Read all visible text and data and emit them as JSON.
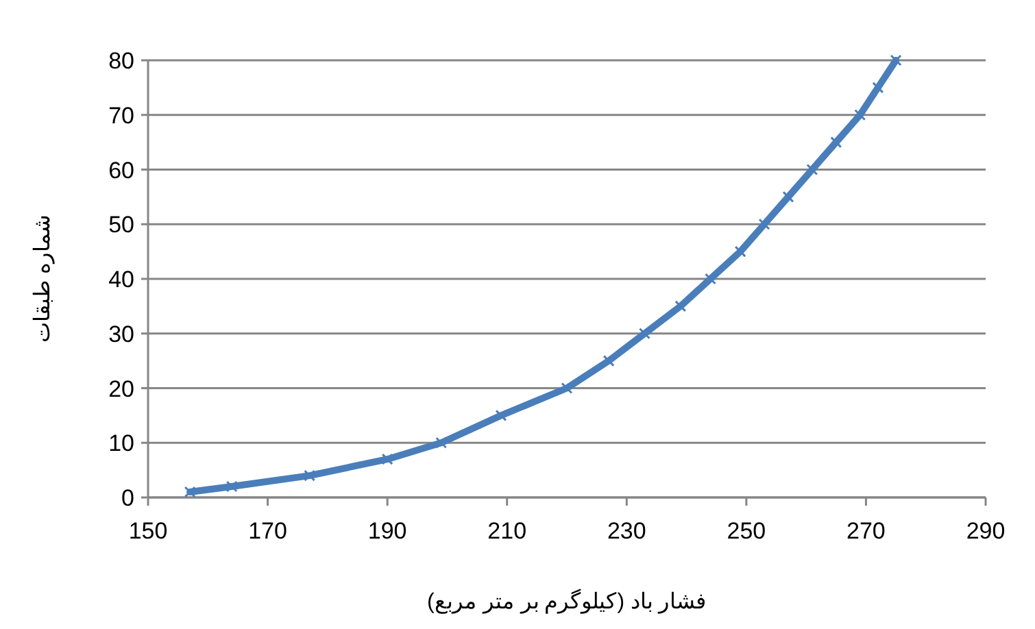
{
  "chart_data": {
    "type": "line",
    "xlabel": "فشار باد (کیلوگرم بر متر مربع)",
    "ylabel": "شماره طبقات",
    "xlim": [
      150,
      290
    ],
    "xticks": [
      150,
      170,
      190,
      210,
      230,
      250,
      270,
      290
    ],
    "ylim": [
      0,
      80
    ],
    "yticks": [
      0,
      10,
      20,
      30,
      40,
      50,
      60,
      70,
      80
    ],
    "grid": "y",
    "marker": "cross",
    "line_style": "solid",
    "series": [
      {
        "color": "#4a7ebb",
        "x": [
          157,
          164,
          177,
          190,
          199,
          209,
          220,
          227,
          233,
          239,
          244,
          249,
          253,
          257,
          261,
          265,
          269,
          272,
          275
        ],
        "values": [
          1,
          2,
          4,
          7,
          10,
          15,
          20,
          25,
          30,
          35,
          40,
          45,
          50,
          55,
          60,
          65,
          70,
          75,
          80
        ]
      }
    ]
  }
}
